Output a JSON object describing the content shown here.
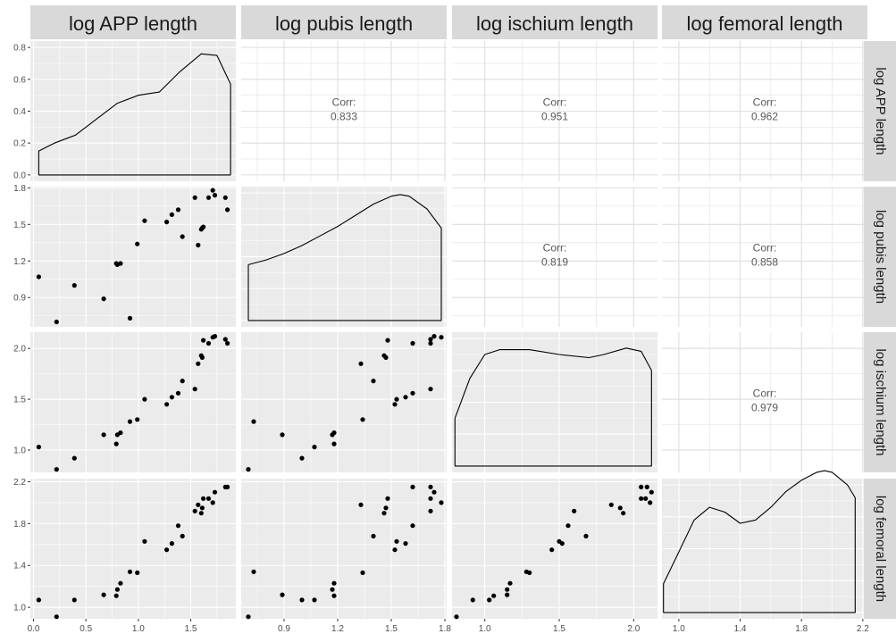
{
  "chart_data": {
    "type": "scatter-matrix",
    "variables": [
      "log APP length",
      "log pubis length",
      "log ischium length",
      "log femoral length"
    ],
    "corr_label": "Corr:",
    "correlations": [
      {
        "row": 0,
        "col": 1,
        "value": "0.833"
      },
      {
        "row": 0,
        "col": 2,
        "value": "0.951"
      },
      {
        "row": 0,
        "col": 3,
        "value": "0.962"
      },
      {
        "row": 1,
        "col": 2,
        "value": "0.819"
      },
      {
        "row": 1,
        "col": 3,
        "value": "0.858"
      },
      {
        "row": 2,
        "col": 3,
        "value": "0.979"
      }
    ],
    "ranges": [
      [
        -0.03,
        1.93
      ],
      [
        0.66,
        1.81
      ],
      [
        0.78,
        2.16
      ],
      [
        0.89,
        2.23
      ]
    ],
    "x_ticks": [
      [
        0.0,
        0.5,
        1.0,
        1.5
      ],
      [
        0.9,
        1.2,
        1.5,
        1.8
      ],
      [
        1.0,
        1.5,
        2.0
      ],
      [
        1.0,
        1.4,
        1.8,
        2.2
      ]
    ],
    "x_tick_labels": [
      [
        "0.0",
        "0.5",
        "1.0",
        "1.5"
      ],
      [
        "0.9",
        "1.2",
        "1.5",
        "1.8"
      ],
      [
        "1.0",
        "1.5",
        "2.0"
      ],
      [
        "1.0",
        "1.4",
        "1.8",
        "2.2"
      ]
    ],
    "y_ticks": [
      [
        1.2,
        1.5,
        1.8,
        0.9
      ],
      [
        1.0,
        1.5,
        2.0
      ],
      [
        1.0,
        1.4,
        1.8,
        2.2
      ]
    ],
    "y_tick_labels": [
      [
        "1.2",
        "1.5",
        "1.8",
        "0.9"
      ],
      [
        "1.0",
        "1.5",
        "2.0"
      ],
      [
        "1.0",
        "1.4",
        "1.8",
        "2.2"
      ]
    ],
    "density_y_ticks": [
      0.0,
      0.2,
      0.4,
      0.6,
      0.8
    ],
    "density_y_tick_labels": [
      "0.0",
      "0.2",
      "0.4",
      "0.6",
      "0.8"
    ],
    "density_ylim": [
      -0.04,
      0.84
    ],
    "densities": [
      {
        "x": [
          0.05,
          0.2,
          0.4,
          0.6,
          0.8,
          1.0,
          1.2,
          1.4,
          1.6,
          1.75,
          1.88
        ],
        "y": [
          0.15,
          0.2,
          0.25,
          0.35,
          0.45,
          0.5,
          0.52,
          0.65,
          0.76,
          0.75,
          0.57
        ]
      },
      {
        "x": [
          0.7,
          0.8,
          0.9,
          1.0,
          1.1,
          1.2,
          1.3,
          1.4,
          1.5,
          1.55,
          1.6,
          1.7,
          1.78
        ],
        "y": [
          0.35,
          0.38,
          0.42,
          0.47,
          0.53,
          0.59,
          0.66,
          0.73,
          0.78,
          0.79,
          0.78,
          0.7,
          0.58
        ]
      },
      {
        "x": [
          0.8,
          0.9,
          1.0,
          1.1,
          1.3,
          1.5,
          1.7,
          1.8,
          1.95,
          2.05,
          2.12
        ],
        "y": [
          0.3,
          0.55,
          0.7,
          0.73,
          0.73,
          0.7,
          0.68,
          0.7,
          0.74,
          0.72,
          0.6
        ]
      },
      {
        "x": [
          0.9,
          1.0,
          1.1,
          1.2,
          1.3,
          1.4,
          1.5,
          1.6,
          1.7,
          1.8,
          1.9,
          1.95,
          2.0,
          2.1,
          2.15
        ],
        "y": [
          0.18,
          0.38,
          0.58,
          0.66,
          0.63,
          0.56,
          0.58,
          0.66,
          0.76,
          0.83,
          0.88,
          0.89,
          0.88,
          0.8,
          0.72
        ]
      }
    ],
    "observations": [
      {
        "app": 0.05,
        "pubis": 1.07,
        "ischium": 1.03,
        "femoral": 1.07
      },
      {
        "app": 0.22,
        "pubis": 0.7,
        "ischium": 0.81,
        "femoral": 0.91
      },
      {
        "app": 0.39,
        "pubis": 1.0,
        "ischium": 0.92,
        "femoral": 1.07
      },
      {
        "app": 0.67,
        "pubis": 0.89,
        "ischium": 1.15,
        "femoral": 1.12
      },
      {
        "app": 0.79,
        "pubis": 1.18,
        "ischium": 1.06,
        "femoral": 1.11
      },
      {
        "app": 0.8,
        "pubis": 1.17,
        "ischium": 1.15,
        "femoral": 1.17
      },
      {
        "app": 0.83,
        "pubis": 1.18,
        "ischium": 1.17,
        "femoral": 1.23
      },
      {
        "app": 0.92,
        "pubis": 0.73,
        "ischium": 1.28,
        "femoral": 1.34
      },
      {
        "app": 0.99,
        "pubis": 1.34,
        "ischium": 1.3,
        "femoral": 1.33
      },
      {
        "app": 1.06,
        "pubis": 1.53,
        "ischium": 1.5,
        "femoral": 1.63
      },
      {
        "app": 1.27,
        "pubis": 1.52,
        "ischium": 1.45,
        "femoral": 1.55
      },
      {
        "app": 1.32,
        "pubis": 1.58,
        "ischium": 1.52,
        "femoral": 1.61
      },
      {
        "app": 1.38,
        "pubis": 1.62,
        "ischium": 1.56,
        "femoral": 1.78
      },
      {
        "app": 1.42,
        "pubis": 1.4,
        "ischium": 1.68,
        "femoral": 1.68
      },
      {
        "app": 1.54,
        "pubis": 1.72,
        "ischium": 1.6,
        "femoral": 1.92
      },
      {
        "app": 1.57,
        "pubis": 1.33,
        "ischium": 1.85,
        "femoral": 1.98
      },
      {
        "app": 1.6,
        "pubis": 1.46,
        "ischium": 1.93,
        "femoral": 1.9
      },
      {
        "app": 1.61,
        "pubis": 1.47,
        "ischium": 1.91,
        "femoral": 1.95
      },
      {
        "app": 1.62,
        "pubis": 1.48,
        "ischium": 2.08,
        "femoral": 2.04
      },
      {
        "app": 1.67,
        "pubis": 1.72,
        "ischium": 2.05,
        "femoral": 2.04
      },
      {
        "app": 1.71,
        "pubis": 1.78,
        "ischium": 2.11,
        "femoral": 2.0
      },
      {
        "app": 1.73,
        "pubis": 1.74,
        "ischium": 2.12,
        "femoral": 2.1
      },
      {
        "app": 1.83,
        "pubis": 1.72,
        "ischium": 2.09,
        "femoral": 2.15
      },
      {
        "app": 1.85,
        "pubis": 1.62,
        "ischium": 2.05,
        "femoral": 2.15
      }
    ]
  }
}
